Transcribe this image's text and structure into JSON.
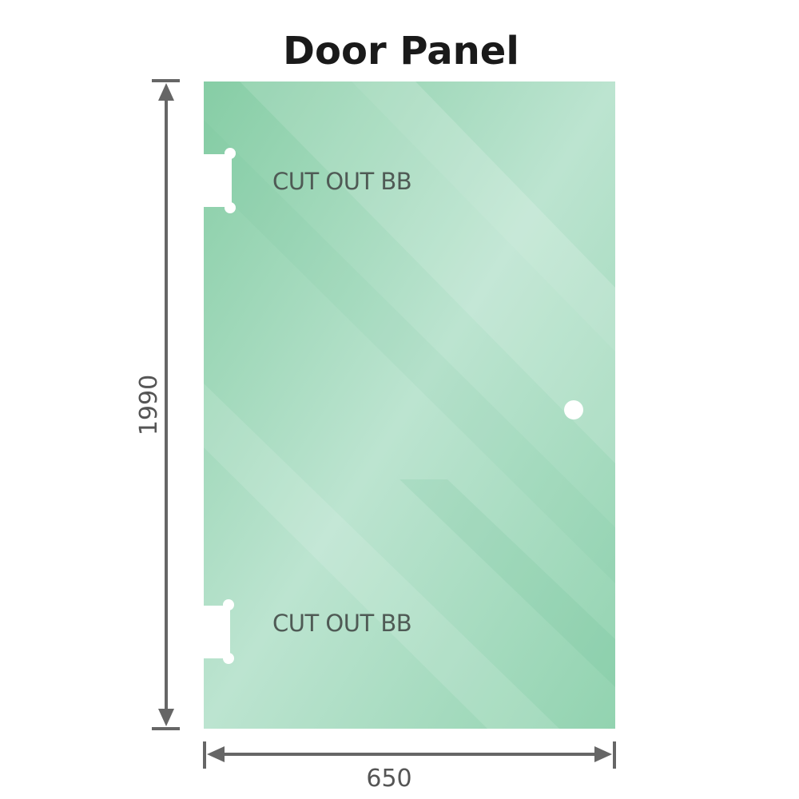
{
  "title": "Door Panel",
  "cutouts": [
    {
      "label": "CUT OUT BB"
    },
    {
      "label": "CUT OUT BB"
    }
  ],
  "dimensions": {
    "height": "1990",
    "width": "650"
  },
  "colors": {
    "glass": "#8ccfaa",
    "glass_light": "#bfe5d2",
    "dimension_line": "#666666",
    "text": "#4f5a55"
  }
}
